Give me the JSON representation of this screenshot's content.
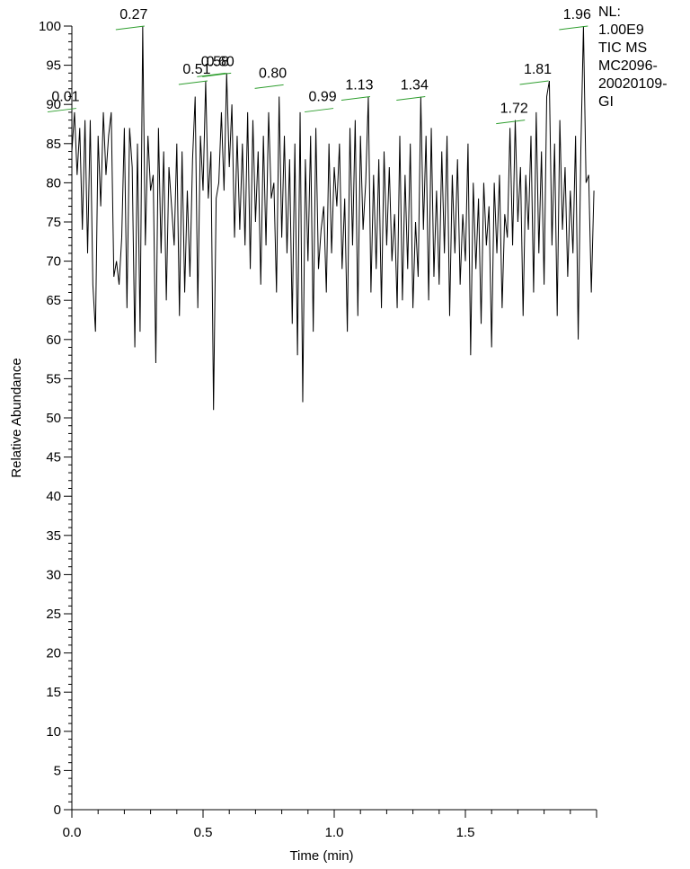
{
  "info": {
    "nl_label": "NL:",
    "nl_value": "1.00E9",
    "scan_label": "TIC  MS",
    "sample_line1": "MC2096-",
    "sample_line2": "20020109-",
    "sample_line3": "GI"
  },
  "chart_data": {
    "type": "line",
    "title": "",
    "xlabel": "Time (min)",
    "ylabel": "Relative Abundance",
    "xlim": [
      0.0,
      2.0
    ],
    "ylim": [
      0,
      100
    ],
    "x_ticks": [
      0.0,
      0.5,
      1.0,
      1.5
    ],
    "x_tick_labels": [
      "0.0",
      "0.5",
      "1.0",
      "1.5"
    ],
    "y_ticks": [
      0,
      5,
      10,
      15,
      20,
      25,
      30,
      35,
      40,
      45,
      50,
      55,
      60,
      65,
      70,
      75,
      80,
      85,
      90,
      95,
      100
    ],
    "y_tick_labels": [
      "0",
      "5",
      "10",
      "15",
      "20",
      "25",
      "30",
      "35",
      "40",
      "45",
      "50",
      "55",
      "60",
      "65",
      "70",
      "75",
      "80",
      "85",
      "90",
      "95",
      "100"
    ],
    "grid": false,
    "line_color": "#000000",
    "annotation_color": "#2e9e2e",
    "series": [
      {
        "x": [
          0.0,
          0.01,
          0.02,
          0.03,
          0.04,
          0.05,
          0.06,
          0.07,
          0.08,
          0.09,
          0.1,
          0.11,
          0.12,
          0.13,
          0.14,
          0.15,
          0.16,
          0.17,
          0.18,
          0.19,
          0.2,
          0.21,
          0.22,
          0.23,
          0.24,
          0.25,
          0.26,
          0.27,
          0.28,
          0.29,
          0.3,
          0.31,
          0.32,
          0.33,
          0.34,
          0.35,
          0.36,
          0.37,
          0.38,
          0.39,
          0.4,
          0.41,
          0.42,
          0.43,
          0.44,
          0.45,
          0.46,
          0.47,
          0.48,
          0.49,
          0.5,
          0.51,
          0.52,
          0.53,
          0.54,
          0.55,
          0.56,
          0.57,
          0.58,
          0.59,
          0.6,
          0.61,
          0.62,
          0.63,
          0.64,
          0.65,
          0.66,
          0.67,
          0.68,
          0.69,
          0.7,
          0.71,
          0.72,
          0.73,
          0.74,
          0.75,
          0.76,
          0.77,
          0.78,
          0.79,
          0.8,
          0.81,
          0.82,
          0.83,
          0.84,
          0.85,
          0.86,
          0.87,
          0.88,
          0.89,
          0.9,
          0.91,
          0.92,
          0.93,
          0.94,
          0.95,
          0.96,
          0.97,
          0.98,
          0.99,
          1.0,
          1.01,
          1.02,
          1.03,
          1.04,
          1.05,
          1.06,
          1.07,
          1.08,
          1.09,
          1.1,
          1.11,
          1.12,
          1.13,
          1.14,
          1.15,
          1.16,
          1.17,
          1.18,
          1.19,
          1.2,
          1.21,
          1.22,
          1.23,
          1.24,
          1.25,
          1.26,
          1.27,
          1.28,
          1.29,
          1.3,
          1.31,
          1.32,
          1.33,
          1.34,
          1.35,
          1.36,
          1.37,
          1.38,
          1.39,
          1.4,
          1.41,
          1.42,
          1.43,
          1.44,
          1.45,
          1.46,
          1.47,
          1.48,
          1.49,
          1.5,
          1.51,
          1.52,
          1.53,
          1.54,
          1.55,
          1.56,
          1.57,
          1.58,
          1.59,
          1.6,
          1.61,
          1.62,
          1.63,
          1.64,
          1.65,
          1.66,
          1.67,
          1.68,
          1.69,
          1.7,
          1.71,
          1.72,
          1.73,
          1.74,
          1.75,
          1.76,
          1.77,
          1.78,
          1.79,
          1.8,
          1.81,
          1.82,
          1.83,
          1.84,
          1.85,
          1.86,
          1.87,
          1.88,
          1.89,
          1.9,
          1.91,
          1.92,
          1.93,
          1.94,
          1.95,
          1.96,
          1.97,
          1.98,
          1.99
        ],
        "y": [
          84,
          89,
          81,
          87,
          74,
          88,
          71,
          88,
          67,
          61,
          86,
          77,
          89,
          81,
          86,
          89,
          68,
          70,
          67,
          73,
          87,
          64,
          87,
          82,
          59,
          85,
          61,
          100,
          72,
          86,
          79,
          81,
          57,
          87,
          71,
          84,
          65,
          82,
          77,
          72,
          85,
          63,
          84,
          66,
          79,
          68,
          83,
          91,
          64,
          86,
          79,
          93,
          78,
          84,
          51,
          78,
          80,
          89,
          79,
          94,
          82,
          90,
          73,
          86,
          74,
          85,
          72,
          89,
          69,
          88,
          75,
          84,
          67,
          86,
          72,
          89,
          78,
          80,
          66,
          91,
          73,
          86,
          71,
          83,
          62,
          85,
          58,
          89,
          52,
          83,
          70,
          86,
          61,
          87,
          69,
          74,
          77,
          66,
          85,
          71,
          82,
          77,
          85,
          69,
          78,
          61,
          87,
          72,
          88,
          63,
          86,
          74,
          80,
          91,
          66,
          81,
          69,
          83,
          64,
          84,
          72,
          82,
          70,
          76,
          64,
          86,
          65,
          81,
          69,
          85,
          64,
          75,
          68,
          91,
          74,
          86,
          65,
          87,
          68,
          79,
          67,
          84,
          71,
          86,
          63,
          81,
          71,
          83,
          67,
          76,
          70,
          85,
          58,
          80,
          69,
          78,
          62,
          80,
          72,
          77,
          59,
          80,
          71,
          81,
          64,
          76,
          73,
          87,
          72,
          88,
          75,
          82,
          63,
          81,
          74,
          86,
          66,
          89,
          71,
          84,
          67,
          91,
          93,
          72,
          85,
          63,
          88,
          74,
          82,
          68,
          79,
          71,
          86,
          60,
          84,
          100,
          80,
          81,
          66,
          79
        ]
      }
    ],
    "annotations": [
      {
        "label": "0.01",
        "x": 0.01,
        "y": 89.5
      },
      {
        "label": "0.27",
        "x": 0.27,
        "y": 100
      },
      {
        "label": "0.51",
        "x": 0.51,
        "y": 93
      },
      {
        "label": "0.58",
        "x": 0.58,
        "y": 94
      },
      {
        "label": "0.60",
        "x": 0.6,
        "y": 94
      },
      {
        "label": "0.80",
        "x": 0.8,
        "y": 92.5
      },
      {
        "label": "0.99",
        "x": 0.99,
        "y": 89.5
      },
      {
        "label": "1.13",
        "x": 1.13,
        "y": 91
      },
      {
        "label": "1.34",
        "x": 1.34,
        "y": 91
      },
      {
        "label": "1.72",
        "x": 1.72,
        "y": 88
      },
      {
        "label": "1.81",
        "x": 1.81,
        "y": 93
      },
      {
        "label": "1.96",
        "x": 1.96,
        "y": 100
      }
    ]
  }
}
